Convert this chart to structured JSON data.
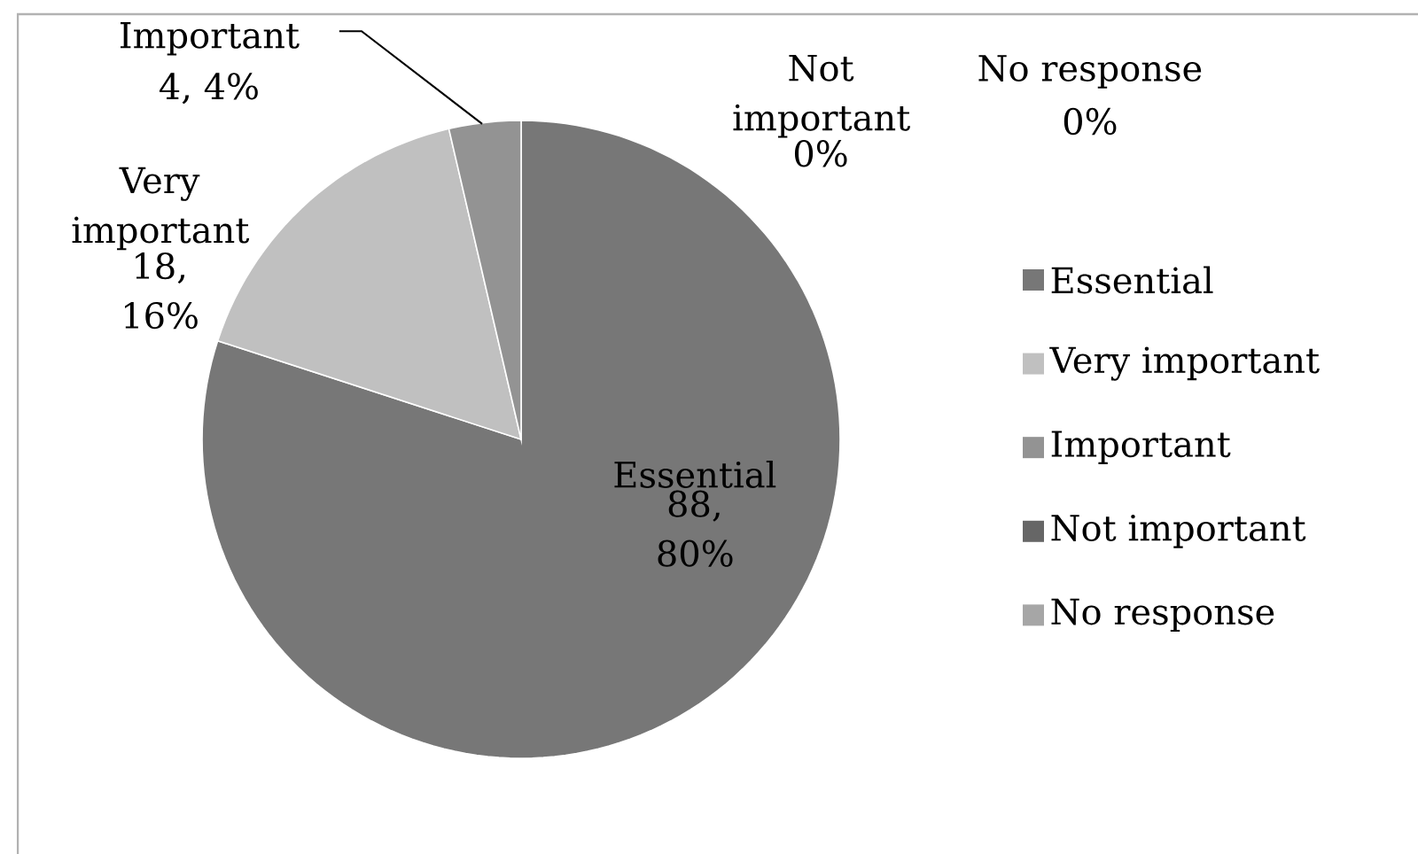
{
  "chart_data": {
    "type": "pie",
    "categories": [
      "Essential",
      "Very important",
      "Important",
      "Not important",
      "No response"
    ],
    "values": [
      88,
      18,
      4,
      0,
      0
    ],
    "value_labels": [
      "88, 80%",
      "18, 16%",
      "4, 4%",
      "0%",
      "0%"
    ],
    "colors": [
      "#777777",
      "#c0c0c0",
      "#939393",
      "#666666",
      "#a6a6a6"
    ],
    "legend": "right"
  }
}
